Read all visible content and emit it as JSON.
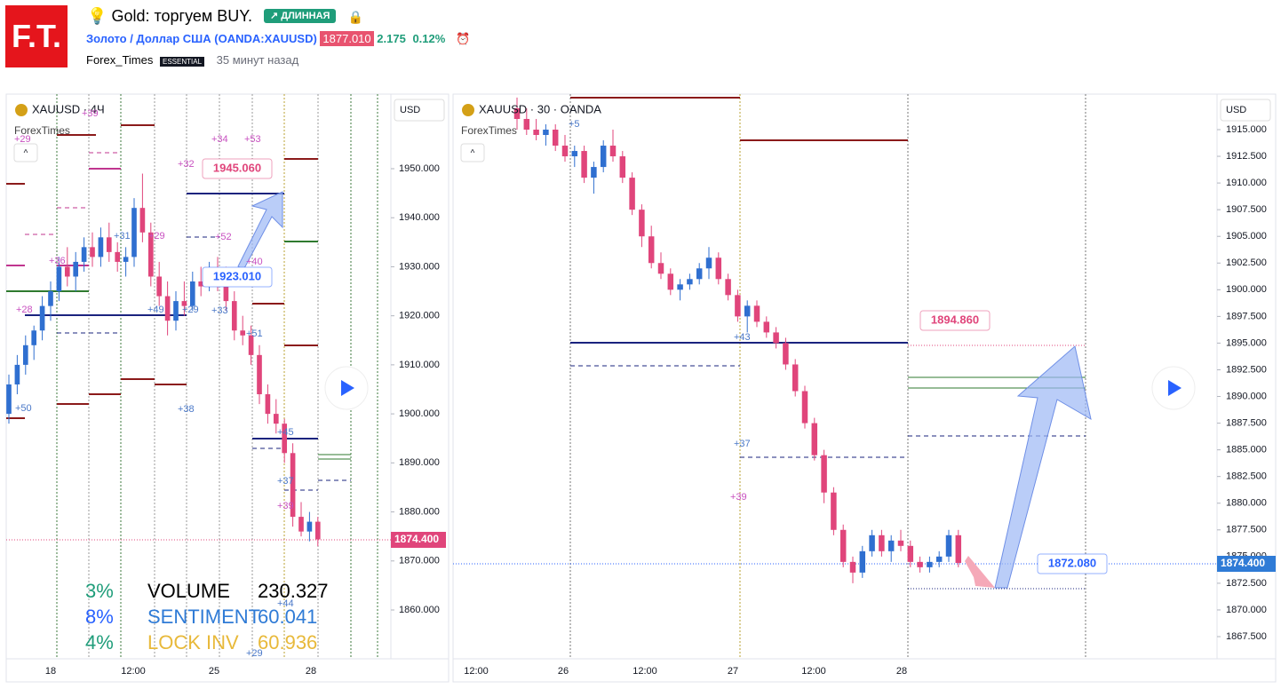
{
  "header": {
    "logo": "F.T.",
    "title": "Gold: торгуем BUY.",
    "badge": "↗ ДЛИННАЯ",
    "symbol_name": "Золото / Доллар США",
    "symbol_code": "(OANDA:XAUUSD)",
    "price": "1877.010",
    "change": "2.175",
    "change_pct": "0.12%",
    "author": "Forex_Times",
    "plan": "ESSENTIAL",
    "time": "35 минут назад"
  },
  "colors": {
    "up": "#2f6fd0",
    "down": "#e0457b"
  },
  "panels": [
    {
      "symbol": "XAUUSD · 4Ч",
      "source": "ForexTimes",
      "currency": "USD",
      "price_tag": "1874.400",
      "xlabels": [
        "18",
        "12:00",
        "25",
        "28"
      ],
      "yticks": [
        {
          "value": 1950,
          "label": "1950.000"
        },
        {
          "value": 1940,
          "label": "1940.000"
        },
        {
          "value": 1930,
          "label": "1930.000"
        },
        {
          "value": 1920,
          "label": "1920.000"
        },
        {
          "value": 1910,
          "label": "1910.000"
        },
        {
          "value": 1900,
          "label": "1900.000"
        },
        {
          "value": 1890,
          "label": "1890.000"
        },
        {
          "value": 1880,
          "label": "1880.000"
        },
        {
          "value": 1870,
          "label": "1870.000"
        },
        {
          "value": 1860,
          "label": "1860.000"
        }
      ],
      "candles": [
        [
          1900,
          1908,
          1898,
          1906
        ],
        [
          1906,
          1912,
          1904,
          1910
        ],
        [
          1910,
          1916,
          1908,
          1914
        ],
        [
          1914,
          1918,
          1911,
          1917
        ],
        [
          1917,
          1924,
          1915,
          1922
        ],
        [
          1922,
          1927,
          1919,
          1925
        ],
        [
          1925,
          1932,
          1923,
          1930
        ],
        [
          1930,
          1934,
          1926,
          1928
        ],
        [
          1928,
          1933,
          1925,
          1931
        ],
        [
          1931,
          1936,
          1929,
          1934
        ],
        [
          1934,
          1937,
          1930,
          1932
        ],
        [
          1932,
          1938,
          1930,
          1936
        ],
        [
          1936,
          1939,
          1931,
          1933
        ],
        [
          1933,
          1935,
          1929,
          1931
        ],
        [
          1931,
          1934,
          1928,
          1932
        ],
        [
          1932,
          1944,
          1930,
          1942
        ],
        [
          1942,
          1949,
          1935,
          1937
        ],
        [
          1937,
          1939,
          1926,
          1928
        ],
        [
          1928,
          1931,
          1922,
          1924
        ],
        [
          1924,
          1927,
          1916,
          1919
        ],
        [
          1919,
          1925,
          1917,
          1923
        ],
        [
          1923,
          1927,
          1920,
          1922
        ],
        [
          1922,
          1929,
          1921,
          1927
        ],
        [
          1927,
          1930,
          1924,
          1926
        ],
        [
          1926,
          1931,
          1925,
          1929
        ],
        [
          1929,
          1932,
          1925,
          1927
        ],
        [
          1927,
          1930,
          1921,
          1923
        ],
        [
          1923,
          1925,
          1915,
          1917
        ],
        [
          1917,
          1920,
          1914,
          1916
        ],
        [
          1916,
          1918,
          1910,
          1912
        ],
        [
          1912,
          1914,
          1902,
          1904
        ],
        [
          1904,
          1906,
          1898,
          1900
        ],
        [
          1900,
          1903,
          1896,
          1898
        ],
        [
          1898,
          1899,
          1890,
          1892
        ],
        [
          1892,
          1894,
          1877,
          1879
        ],
        [
          1879,
          1882,
          1875,
          1876
        ],
        [
          1876,
          1880,
          1874,
          1878
        ],
        [
          1878,
          1879,
          1873,
          1874.4
        ]
      ],
      "callouts": [
        "1945.060",
        "1923.010"
      ],
      "markers": [
        "+29",
        "+39",
        "+34",
        "+53",
        "+32",
        "+31",
        "+29",
        "+36",
        "+52",
        "+40",
        "+28",
        "+49",
        "+29",
        "+33",
        "+51",
        "+38",
        "+50",
        "+45",
        "+37",
        "+39",
        "+44",
        "+29"
      ],
      "stats": [
        [
          "3%",
          "VOLUME",
          "230.327"
        ],
        [
          "8%",
          "SENTIMENT",
          "60.041"
        ],
        [
          "4%",
          "LOCK INV",
          "60.936"
        ]
      ]
    },
    {
      "symbol": "XAUUSD · 30 · OANDA",
      "source": "ForexTimes",
      "currency": "USD",
      "price_tag": "1874.400",
      "xlabels": [
        "12:00",
        "26",
        "12:00",
        "27",
        "12:00",
        "28"
      ],
      "yticks": [
        {
          "value": 1915,
          "label": "1915.000"
        },
        {
          "value": 1912.5,
          "label": "1912.500"
        },
        {
          "value": 1910,
          "label": "1910.000"
        },
        {
          "value": 1907.5,
          "label": "1907.500"
        },
        {
          "value": 1905,
          "label": "1905.000"
        },
        {
          "value": 1902.5,
          "label": "1902.500"
        },
        {
          "value": 1900,
          "label": "1900.000"
        },
        {
          "value": 1897.5,
          "label": "1897.500"
        },
        {
          "value": 1895,
          "label": "1895.000"
        },
        {
          "value": 1892.5,
          "label": "1892.500"
        },
        {
          "value": 1890,
          "label": "1890.000"
        },
        {
          "value": 1887.5,
          "label": "1887.500"
        },
        {
          "value": 1885,
          "label": "1885.000"
        },
        {
          "value": 1882.5,
          "label": "1882.500"
        },
        {
          "value": 1880,
          "label": "1880.000"
        },
        {
          "value": 1877.5,
          "label": "1877.500"
        },
        {
          "value": 1875,
          "label": "1875.000"
        },
        {
          "value": 1872.5,
          "label": "1872.500"
        },
        {
          "value": 1870,
          "label": "1870.000"
        },
        {
          "value": 1867.5,
          "label": "1867.500"
        }
      ],
      "candles": [
        [
          1917,
          1918,
          1915,
          1916
        ],
        [
          1916,
          1917,
          1914.5,
          1915
        ],
        [
          1915,
          1916,
          1914,
          1914.5
        ],
        [
          1914.5,
          1915.5,
          1913.5,
          1915
        ],
        [
          1915,
          1915.5,
          1913,
          1913.5
        ],
        [
          1913.5,
          1914.5,
          1912,
          1912.5
        ],
        [
          1912.5,
          1913.5,
          1911.5,
          1913
        ],
        [
          1913,
          1913.5,
          1910,
          1910.5
        ],
        [
          1910.5,
          1912,
          1909,
          1911.5
        ],
        [
          1911.5,
          1914,
          1911,
          1913.5
        ],
        [
          1913.5,
          1915,
          1912,
          1912.5
        ],
        [
          1912.5,
          1913,
          1910,
          1910.5
        ],
        [
          1910.5,
          1911,
          1907,
          1907.5
        ],
        [
          1907.5,
          1908,
          1904,
          1905
        ],
        [
          1905,
          1906,
          1902,
          1902.5
        ],
        [
          1902.5,
          1903.5,
          1901,
          1901.5
        ],
        [
          1901.5,
          1902,
          1899.5,
          1900
        ],
        [
          1900,
          1901,
          1899,
          1900.5
        ],
        [
          1900.5,
          1901.5,
          1900,
          1901
        ],
        [
          1901,
          1902.5,
          1900.5,
          1902
        ],
        [
          1902,
          1904,
          1901,
          1903
        ],
        [
          1903,
          1903.5,
          1900.5,
          1901
        ],
        [
          1901,
          1901.5,
          1899,
          1899.5
        ],
        [
          1899.5,
          1900,
          1897,
          1897.5
        ],
        [
          1897.5,
          1899,
          1896,
          1898.5
        ],
        [
          1898.5,
          1899,
          1896.5,
          1897
        ],
        [
          1897,
          1897.5,
          1895.5,
          1896
        ],
        [
          1896,
          1896.5,
          1894.5,
          1895
        ],
        [
          1895,
          1895.5,
          1892.5,
          1893
        ],
        [
          1893,
          1893.5,
          1890,
          1890.5
        ],
        [
          1890.5,
          1891,
          1887,
          1887.5
        ],
        [
          1887.5,
          1888,
          1884,
          1884.5
        ],
        [
          1884.5,
          1885,
          1880,
          1881
        ],
        [
          1881,
          1881.5,
          1877,
          1877.5
        ],
        [
          1877.5,
          1878,
          1874,
          1874.5
        ],
        [
          1874.5,
          1875,
          1872.5,
          1873.5
        ],
        [
          1873.5,
          1876,
          1873,
          1875.5
        ],
        [
          1875.5,
          1877.5,
          1875,
          1877
        ],
        [
          1877,
          1877.5,
          1875,
          1875.5
        ],
        [
          1875.5,
          1877,
          1874.5,
          1876.5
        ],
        [
          1876.5,
          1877.5,
          1875.5,
          1876
        ],
        [
          1876,
          1876.5,
          1874,
          1874.5
        ],
        [
          1874.5,
          1875,
          1873.5,
          1874
        ],
        [
          1874,
          1875,
          1873.5,
          1874.5
        ],
        [
          1874.5,
          1875.5,
          1874,
          1875
        ],
        [
          1875,
          1877.5,
          1874.5,
          1877
        ],
        [
          1877,
          1877.5,
          1874,
          1874.4
        ]
      ],
      "callouts": [
        "1894.860",
        "1872.080"
      ],
      "markers": [
        "+5",
        "+43",
        "+37",
        "+39"
      ]
    }
  ]
}
